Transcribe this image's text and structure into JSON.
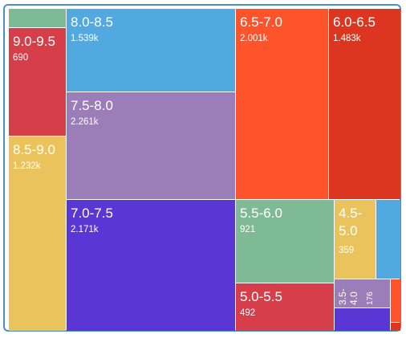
{
  "chart_data": {
    "type": "treemap",
    "title": "",
    "tiles": [
      {
        "name": "",
        "value": null,
        "color": "#7fba96"
      },
      {
        "name": "9.0-9.5",
        "value": 690,
        "display_value": "690",
        "color": "#d63e4a"
      },
      {
        "name": "8.5-9.0",
        "value": 1232,
        "display_value": "1.232k",
        "color": "#ebc35c"
      },
      {
        "name": "8.0-8.5",
        "value": 1539,
        "display_value": "1.539k",
        "color": "#52a9df"
      },
      {
        "name": "7.5-8.0",
        "value": 2261,
        "display_value": "2.261k",
        "color": "#9b7eb9"
      },
      {
        "name": "7.0-7.5",
        "value": 2171,
        "display_value": "2.171k",
        "color": "#5a37d4"
      },
      {
        "name": "6.5-7.0",
        "value": 2001,
        "display_value": "2.001k",
        "color": "#fe532b"
      },
      {
        "name": "6.0-6.5",
        "value": 1483,
        "display_value": "1.483k",
        "color": "#dc3620"
      },
      {
        "name": "5.5-6.0",
        "value": 921,
        "display_value": "921",
        "color": "#7fba96"
      },
      {
        "name": "5.0-5.5",
        "value": 492,
        "display_value": "492",
        "color": "#d63e4a"
      },
      {
        "name": "4.5-5.0",
        "value": 359,
        "display_value": "359",
        "color": "#ebc35c"
      },
      {
        "name": "",
        "value": null,
        "color": "#52a9df"
      },
      {
        "name": "3.5-4.0",
        "value": 176,
        "display_value": "176",
        "color": "#9b7eb9"
      },
      {
        "name": "",
        "value": null,
        "color": "#fe532b"
      },
      {
        "name": "",
        "value": null,
        "color": "#5a37d4"
      },
      {
        "name": "",
        "value": null,
        "color": "#dc3620"
      }
    ]
  }
}
